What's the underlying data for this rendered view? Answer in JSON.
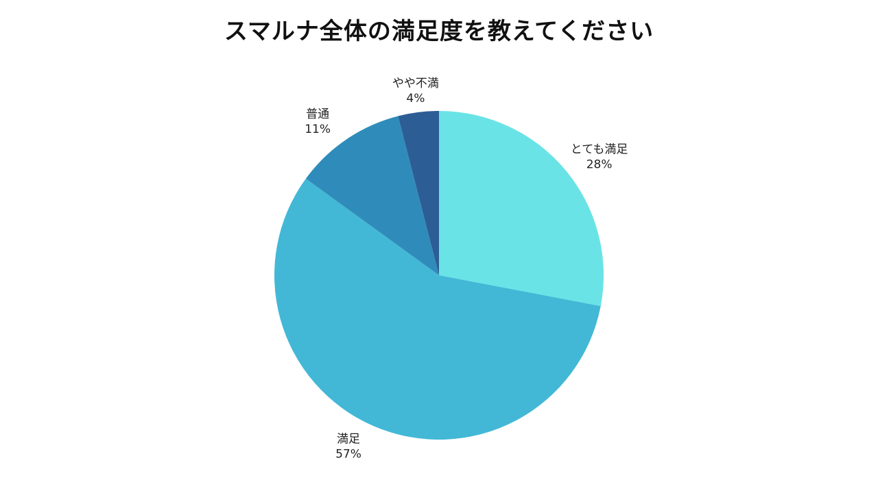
{
  "chart_data": {
    "type": "pie",
    "title": "スマルナ全体の満足度を教えてください",
    "slices": [
      {
        "label": "とても満足",
        "percent_label": "28%",
        "value": 28,
        "color": "#6ae3e6"
      },
      {
        "label": "満足",
        "percent_label": "57%",
        "value": 57,
        "color": "#42b8d6"
      },
      {
        "label": "普通",
        "percent_label": "11%",
        "value": 11,
        "color": "#2f8cba"
      },
      {
        "label": "やや不満",
        "percent_label": "4%",
        "value": 4,
        "color": "#2d5d95"
      }
    ],
    "start": "12 o'clock",
    "direction": "clockwise",
    "legend": "none"
  }
}
